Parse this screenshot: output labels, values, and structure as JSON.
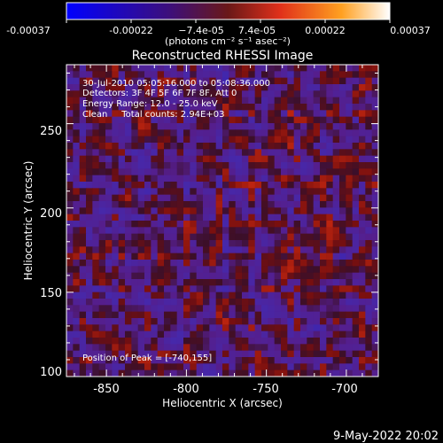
{
  "colorbar": {
    "ticks": [
      "-0.00037",
      "-0.00022",
      "−7.4e-05",
      "7.4e-05",
      "0.00022",
      "0.00037"
    ],
    "unit": "(photons cm⁻² s⁻¹ asec⁻²)",
    "colors": [
      "#0000ff",
      "#3d0f7a",
      "#7a1a1a",
      "#e0301a",
      "#ffa020",
      "#ffffff"
    ]
  },
  "chart_data": {
    "type": "heatmap",
    "title": "Reconstructed RHESSI Image",
    "xlabel": "Heliocentric X (arcsec)",
    "ylabel": "Heliocentric Y (arcsec)",
    "xlim": [
      -875,
      -680
    ],
    "ylim": [
      100,
      285
    ],
    "xticks": [
      "-850",
      "-800",
      "-750",
      "-700"
    ],
    "yticks": [
      "100",
      "150",
      "200",
      "250"
    ],
    "zlim": [
      -0.00037,
      0.00037
    ],
    "annotations": [
      "30-Jul-2010 05:05:16.000 to 05:08:36.000",
      "Detectors: 3F 4F 5F 6F 7F 8F, Att 0",
      "Energy Range: 12.0 - 25.0 keV",
      "Clean     Total counts: 2.94E+03"
    ],
    "peak_label": "Position of Peak = [-740,155]",
    "peak": [
      -740,
      155
    ],
    "grid": false
  },
  "footer": {
    "date": "9-May-2022 20:02"
  }
}
